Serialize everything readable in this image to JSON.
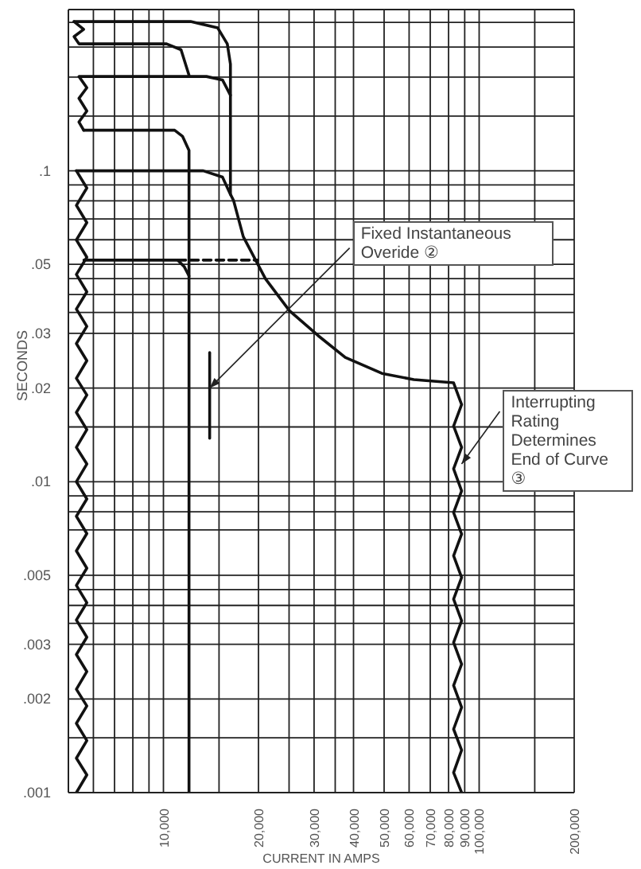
{
  "chart_data": {
    "type": "line",
    "xlabel": "CURRENT IN AMPS",
    "ylabel": "SECONDS",
    "log": "xy",
    "grid": true,
    "xlim": [
      5000,
      200000
    ],
    "ylim": [
      0.001,
      0.33
    ],
    "xticks": [
      {
        "value": 6000,
        "label": null
      },
      {
        "value": 7000,
        "label": null
      },
      {
        "value": 8000,
        "label": null
      },
      {
        "value": 9000,
        "label": null
      },
      {
        "value": 10000,
        "label": "10,000"
      },
      {
        "value": 15000,
        "label": null
      },
      {
        "value": 20000,
        "label": "20,000"
      },
      {
        "value": 25000,
        "label": null
      },
      {
        "value": 30000,
        "label": "30,000"
      },
      {
        "value": 35000,
        "label": null
      },
      {
        "value": 40000,
        "label": "40,000"
      },
      {
        "value": 50000,
        "label": "50,000"
      },
      {
        "value": 60000,
        "label": "60,000"
      },
      {
        "value": 70000,
        "label": "70,000"
      },
      {
        "value": 80000,
        "label": "80,000"
      },
      {
        "value": 90000,
        "label": "90,000"
      },
      {
        "value": 100000,
        "label": "100,000"
      },
      {
        "value": 150000,
        "label": null
      },
      {
        "value": 200000,
        "label": "200,000"
      }
    ],
    "yticks": [
      {
        "value": 0.001,
        "label": ".001"
      },
      {
        "value": 0.0015,
        "label": null
      },
      {
        "value": 0.002,
        "label": ".002"
      },
      {
        "value": 0.003,
        "label": ".003"
      },
      {
        "value": 0.0035,
        "label": null
      },
      {
        "value": 0.004,
        "label": null
      },
      {
        "value": 0.0045,
        "label": null
      },
      {
        "value": 0.005,
        "label": ".005"
      },
      {
        "value": 0.007,
        "label": null
      },
      {
        "value": 0.008,
        "label": null
      },
      {
        "value": 0.009,
        "label": null
      },
      {
        "value": 0.01,
        "label": ".01"
      },
      {
        "value": 0.015,
        "label": null
      },
      {
        "value": 0.02,
        "label": ".02"
      },
      {
        "value": 0.03,
        "label": ".03"
      },
      {
        "value": 0.035,
        "label": null
      },
      {
        "value": 0.04,
        "label": null
      },
      {
        "value": 0.045,
        "label": null
      },
      {
        "value": 0.05,
        "label": ".05"
      },
      {
        "value": 0.06,
        "label": null
      },
      {
        "value": 0.07,
        "label": null
      },
      {
        "value": 0.08,
        "label": null
      },
      {
        "value": 0.09,
        "label": null
      },
      {
        "value": 0.1,
        "label": ".1"
      },
      {
        "value": 0.15,
        "label": null
      },
      {
        "value": 0.2,
        "label": null
      },
      {
        "value": 0.25,
        "label": null
      },
      {
        "value": 0.3,
        "label": null
      }
    ],
    "series": [
      {
        "color": "#111111",
        "x": [
          5210,
          12190,
          14860,
          15930,
          16300,
          16300,
          16680,
          17900,
          21050,
          25060,
          30900,
          37660,
          49200,
          62100,
          82990,
          88000,
          83000,
          88000,
          83000,
          88000,
          83000,
          88000,
          83000,
          88000,
          83000,
          88000,
          83000,
          88000,
          83000,
          88000,
          83000,
          88000,
          83000,
          88000
        ],
        "values": [
          0.302,
          0.302,
          0.288,
          0.256,
          0.2205,
          0.084,
          0.0802,
          0.0614,
          0.0449,
          0.0355,
          0.0295,
          0.0251,
          0.0223,
          0.0213,
          0.0208,
          0.0177,
          0.0151,
          0.0129,
          0.011,
          0.00934,
          0.00796,
          0.00678,
          0.00578,
          0.00492,
          0.00419,
          0.00357,
          0.00304,
          0.00259,
          0.00221,
          0.00188,
          0.0016,
          0.00137,
          0.00116,
          0.001
        ]
      },
      {
        "color": "#111111",
        "x": [
          5210,
          5590,
          5210,
          5400,
          10230,
          11370,
          12050
        ],
        "values": [
          0.302,
          0.285,
          0.27,
          0.256,
          0.256,
          0.245,
          0.203
        ]
      },
      {
        "color": "#111111",
        "x": [
          5590,
          5400,
          5720,
          5400,
          5720,
          5400,
          13690,
          15380,
          16300
        ],
        "values": [
          0.135,
          0.1435,
          0.1556,
          0.171,
          0.185,
          0.201,
          0.201,
          0.196,
          0.175
        ]
      },
      {
        "color": "#111111",
        "x": [
          5590,
          10850,
          11500,
          12050,
          12050
        ],
        "values": [
          0.135,
          0.135,
          0.129,
          0.1163,
          0.001
        ]
      },
      {
        "color": "#111111",
        "x": [
          5300,
          13370,
          15380,
          16300
        ],
        "values": [
          0.1,
          0.1,
          0.0954,
          0.084
        ]
      },
      {
        "color": "#111111",
        "x": [
          5600,
          11100,
          11630,
          12050
        ],
        "values": [
          0.0516,
          0.0516,
          0.0492,
          0.0459
        ]
      },
      {
        "color": "#111111",
        "line_style": "dashed",
        "x": [
          11100,
          19860
        ],
        "values": [
          0.0516,
          0.0516
        ]
      },
      {
        "color": "#111111",
        "x": [
          14010,
          14010
        ],
        "values": [
          0.026,
          0.0138
        ]
      },
      {
        "color": "#111111",
        "x": [
          5300,
          5720,
          5300,
          5720,
          5300,
          5720,
          5300,
          5720,
          5300,
          5720,
          5300,
          5720,
          5300,
          5720,
          5300,
          5720,
          5300,
          5720,
          5300,
          5720,
          5300,
          5720,
          5300,
          5720,
          5300,
          5720,
          5300,
          5720,
          5300,
          5720,
          5300,
          5720,
          5300,
          5720,
          5300,
          5720,
          5300
        ],
        "values": [
          0.1,
          0.088,
          0.0774,
          0.0681,
          0.0599,
          0.0527,
          0.0464,
          0.0408,
          0.0359,
          0.0316,
          0.0278,
          0.0245,
          0.0215,
          0.019,
          0.0167,
          0.0147,
          0.0129,
          0.0114,
          0.01,
          0.0088,
          0.00774,
          0.00681,
          0.00599,
          0.00527,
          0.00464,
          0.00408,
          0.00359,
          0.00316,
          0.00278,
          0.00245,
          0.00215,
          0.0019,
          0.00167,
          0.00147,
          0.00129,
          0.00114,
          0.001
        ]
      }
    ],
    "annotations": [
      {
        "text": "Fixed Instantaneous Overide ②",
        "x": 14010,
        "y": 0.02
      },
      {
        "text": "Interrupting Rating Determines End of Curve ③",
        "x": 88000,
        "y": 0.0114
      }
    ]
  }
}
